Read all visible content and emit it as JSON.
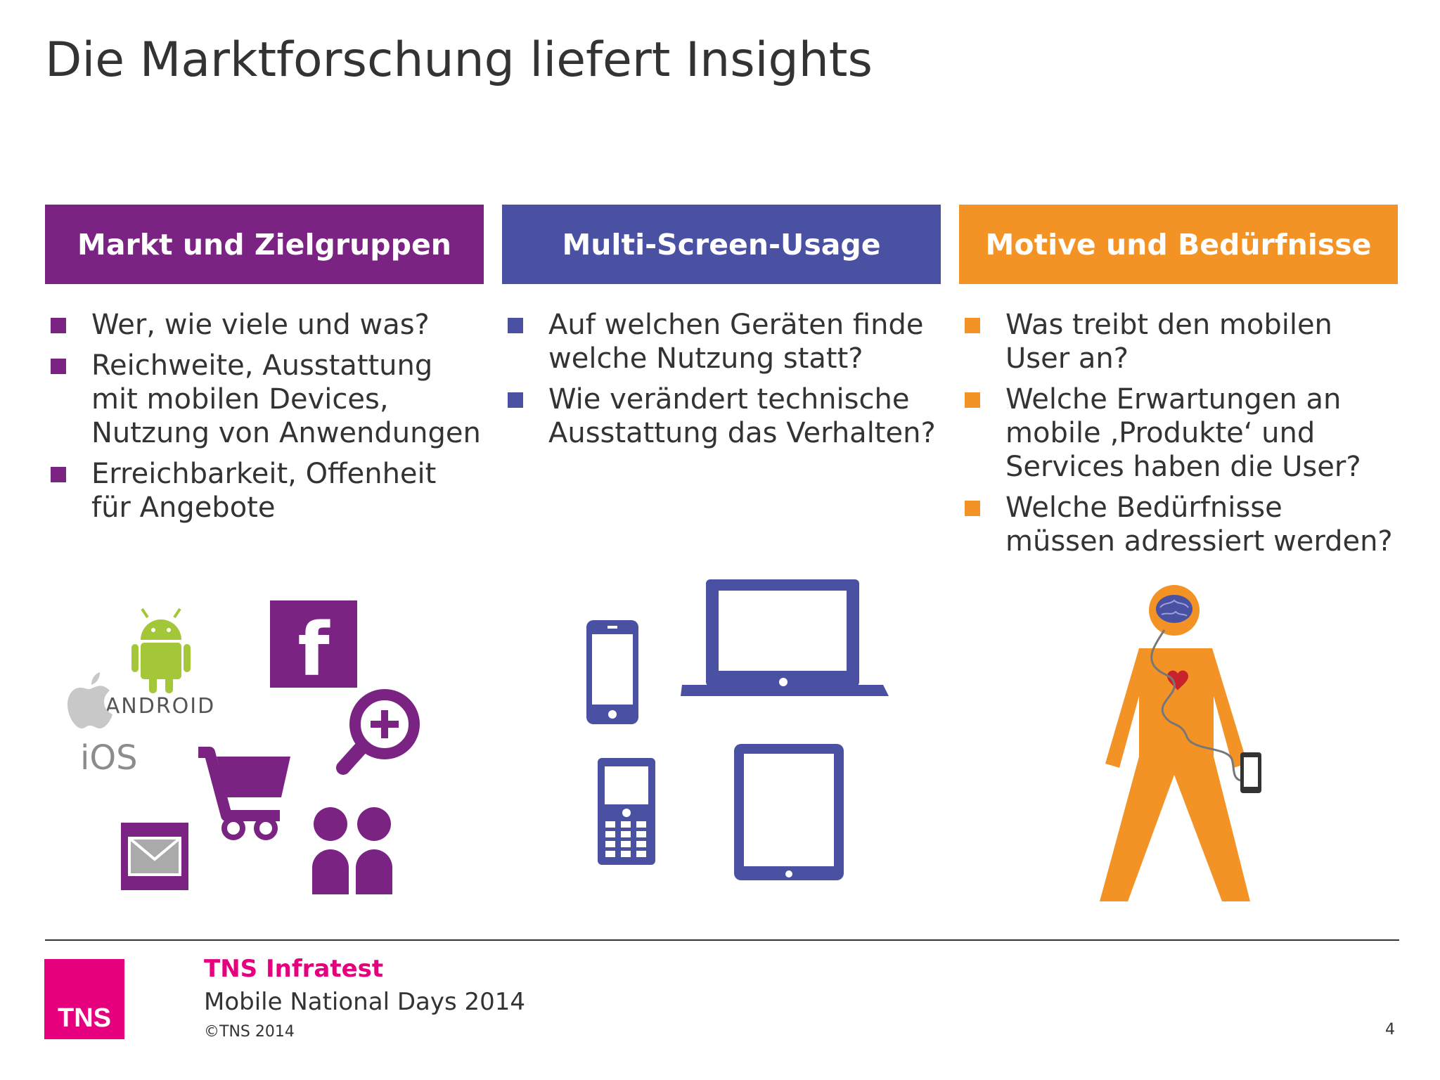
{
  "title": "Die Marktforschung liefert Insights",
  "colors": {
    "purple": "#7b2383",
    "blue": "#4a51a3",
    "orange": "#f39325",
    "pink": "#e6007e",
    "text": "#333333"
  },
  "columns": [
    {
      "header": "Markt und Zielgruppen",
      "bullets": [
        "Wer, wie viele und was?",
        "Reichweite, Ausstattung mit mobilen Devices, Nutzung von Anwendungen",
        "Erreichbarkeit, Offenheit für Angebote"
      ]
    },
    {
      "header": "Multi-Screen-Usage",
      "bullets": [
        "Auf welchen Geräten finde welche Nutzung statt?",
        "Wie verändert technische Ausstattung das Verhalten?"
      ]
    },
    {
      "header": "Motive und Bedürfnisse",
      "bullets": [
        "Was treibt den mobilen User an?",
        "Welche Erwartungen an mobile ‚Produkte‘ und Services haben die User?",
        "Welche Bedürfnisse müssen adressiert werden?"
      ]
    }
  ],
  "icons": {
    "market": [
      "android-icon",
      "facebook-icon",
      "apple-icon",
      "shopping-cart-icon",
      "zoom-in-icon",
      "email-icon",
      "people-icon"
    ],
    "android_label": "ANDROID",
    "ios_label": "iOS",
    "facebook_letter": "f",
    "screens": [
      "smartphone-icon",
      "laptop-icon",
      "feature-phone-icon",
      "tablet-icon"
    ],
    "motives": [
      "human-figure-icon",
      "brain-icon",
      "heart-icon",
      "mobile-device-icon"
    ]
  },
  "footer": {
    "logo": "TNS",
    "company": "TNS Infratest",
    "event": "Mobile National Days 2014",
    "copyright": "©TNS 2014",
    "page": "4"
  }
}
